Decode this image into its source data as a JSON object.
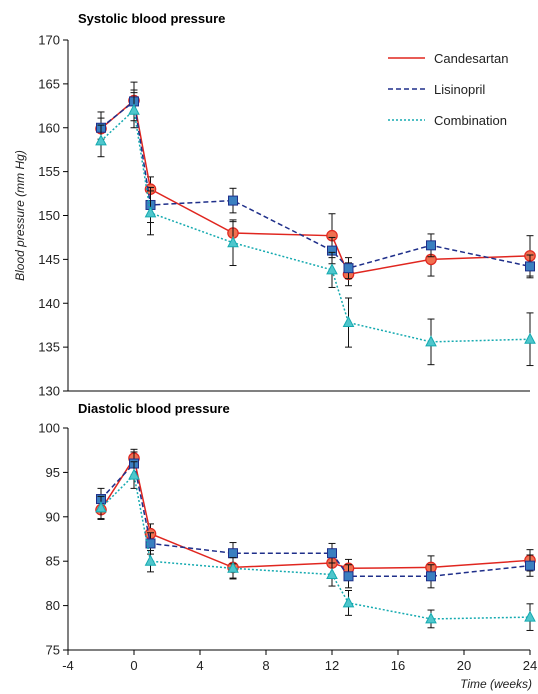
{
  "chart_data": [
    {
      "type": "line",
      "title": "Systolic blood pressure",
      "ylabel": "Blood pressure (mm Hg)",
      "ylim": [
        130,
        170
      ],
      "yticks": [
        130,
        135,
        140,
        145,
        150,
        155,
        160,
        165,
        170
      ],
      "xlim": [
        -4,
        24
      ],
      "legend": "top-right",
      "series": [
        {
          "name": "Candesartan",
          "x": [
            -2,
            0,
            1,
            6,
            12,
            13,
            18,
            24
          ],
          "y": [
            159.9,
            163.1,
            153.0,
            148.0,
            147.7,
            143.3,
            145.0,
            145.4
          ],
          "err": [
            1.2,
            1.2,
            1.4,
            1.3,
            2.5,
            1.3,
            1.9,
            2.3
          ]
        },
        {
          "name": "Lisinopril",
          "x": [
            -2,
            0,
            1,
            6,
            12,
            13,
            18,
            24
          ],
          "y": [
            160.0,
            163.0,
            151.2,
            151.7,
            146.0,
            144.0,
            146.6,
            144.2
          ],
          "err": [
            1.8,
            2.2,
            2.0,
            1.4,
            1.5,
            1.2,
            1.3,
            1.3
          ]
        },
        {
          "name": "Combination",
          "x": [
            -2,
            0,
            1,
            6,
            12,
            13,
            18,
            24
          ],
          "y": [
            158.5,
            162.0,
            150.3,
            146.9,
            143.8,
            137.8,
            135.6,
            135.9
          ],
          "err": [
            1.8,
            2.0,
            2.5,
            2.6,
            2.0,
            2.8,
            2.6,
            3.0
          ]
        }
      ]
    },
    {
      "type": "line",
      "title": "Diastolic blood pressure",
      "ylim": [
        75,
        100
      ],
      "yticks": [
        75,
        80,
        85,
        90,
        95,
        100
      ],
      "xlim": [
        -4,
        24
      ],
      "xticks": [
        -4,
        0,
        4,
        8,
        12,
        16,
        20,
        24
      ],
      "xlabel": "Time (weeks)",
      "series": [
        {
          "name": "Candesartan",
          "x": [
            -2,
            0,
            1,
            6,
            12,
            13,
            18,
            24
          ],
          "y": [
            90.8,
            96.6,
            88.1,
            84.3,
            84.8,
            84.2,
            84.3,
            85.1
          ],
          "err": [
            1.0,
            1.0,
            1.1,
            1.2,
            1.3,
            1.0,
            1.3,
            1.2
          ]
        },
        {
          "name": "Lisinopril",
          "x": [
            -2,
            0,
            1,
            6,
            12,
            13,
            18,
            24
          ],
          "y": [
            92.0,
            96.0,
            87.0,
            85.9,
            85.9,
            83.3,
            83.3,
            84.5
          ],
          "err": [
            1.2,
            1.3,
            1.2,
            1.2,
            1.1,
            1.3,
            1.3,
            1.2
          ]
        },
        {
          "name": "Combination",
          "x": [
            -2,
            0,
            1,
            6,
            12,
            13,
            18,
            24
          ],
          "y": [
            91.0,
            94.7,
            85.0,
            84.2,
            83.5,
            80.3,
            78.5,
            78.7
          ],
          "err": [
            1.3,
            1.5,
            1.2,
            1.2,
            1.3,
            1.4,
            1.0,
            1.5
          ]
        }
      ]
    }
  ],
  "style": {
    "Candesartan": {
      "color": "#e0261f",
      "marker": "circle",
      "marker_fill": "#f07050",
      "dash": ""
    },
    "Lisinopril": {
      "color": "#1f2f8a",
      "marker": "square",
      "marker_fill": "#3a7fc0",
      "dash": "5,3"
    },
    "Combination": {
      "color": "#15aab0",
      "marker": "triangle",
      "marker_fill": "#4fc6cc",
      "dash": "2,2"
    }
  }
}
